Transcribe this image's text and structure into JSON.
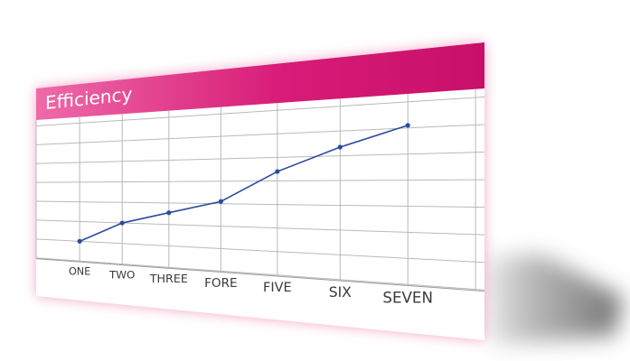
{
  "chart_data": {
    "type": "line",
    "title": "Efficiency",
    "categories": [
      "ONE",
      "TWO",
      "THREE",
      "FORE",
      "FIVE",
      "SIX",
      "SEVEN"
    ],
    "values": [
      1.0,
      2.0,
      2.55,
      3.1,
      4.4,
      5.35,
      6.1
    ],
    "ylim": [
      0,
      7
    ],
    "grid": true,
    "legend": "none",
    "colors": {
      "line": "#2b4aa0",
      "header": "#d81b78",
      "header_light": "#ee6aa8",
      "glow": "#f3a6c9",
      "grid": "#b9b9b9"
    }
  }
}
